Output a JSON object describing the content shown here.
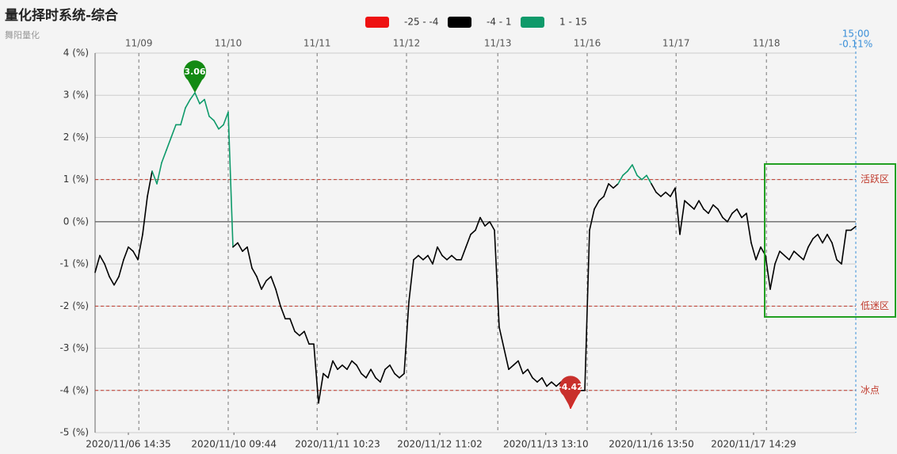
{
  "chart_data": {
    "type": "line",
    "title": "量化择时系统-综合",
    "subtitle": "舞阳量化",
    "x": [
      0,
      1,
      2,
      3,
      4,
      5,
      6,
      7,
      8,
      9,
      10,
      11,
      12,
      13,
      14,
      15,
      16,
      17,
      18,
      19,
      20,
      21,
      22,
      23,
      24,
      25,
      26,
      27,
      28,
      29,
      30,
      31,
      32,
      33,
      34,
      35,
      36,
      37,
      38,
      39,
      40,
      41,
      42,
      43,
      44,
      45,
      46,
      47,
      48,
      49,
      50,
      51,
      52,
      53,
      54,
      55,
      56,
      57,
      58,
      59,
      60,
      61,
      62,
      63,
      64,
      65,
      66,
      67,
      68,
      69,
      70,
      71,
      72,
      73,
      74,
      75,
      76,
      77,
      78,
      79,
      80,
      81,
      82,
      83,
      84,
      85,
      86,
      87,
      88,
      89,
      90,
      91,
      92,
      93,
      94,
      95,
      96,
      97,
      98,
      99,
      100,
      101,
      102,
      103,
      104,
      105,
      106,
      107,
      108,
      109,
      110,
      111,
      112,
      113,
      114,
      115,
      116,
      117,
      118,
      119,
      120,
      121,
      122,
      123,
      124,
      125,
      126,
      127,
      128,
      129,
      130,
      131,
      132,
      133,
      134,
      135,
      136,
      137,
      138,
      139,
      140,
      141,
      142,
      143,
      144,
      145,
      146,
      147,
      148,
      149,
      150,
      151,
      152,
      153,
      154,
      155,
      156,
      157,
      158,
      159,
      160
    ],
    "series": [
      {
        "values": [
          -1.2,
          -0.8,
          -1.0,
          -1.3,
          -1.5,
          -1.3,
          -0.9,
          -0.6,
          -0.7,
          -0.9,
          -0.3,
          0.6,
          1.2,
          0.9,
          1.4,
          1.7,
          2.0,
          2.3,
          2.3,
          2.7,
          2.9,
          3.06,
          2.8,
          2.9,
          2.5,
          2.4,
          2.2,
          2.3,
          2.6,
          -0.6,
          -0.5,
          -0.7,
          -0.6,
          -1.1,
          -1.3,
          -1.6,
          -1.4,
          -1.3,
          -1.6,
          -2.0,
          -2.3,
          -2.3,
          -2.6,
          -2.7,
          -2.6,
          -2.9,
          -2.9,
          -4.3,
          -3.6,
          -3.7,
          -3.3,
          -3.5,
          -3.4,
          -3.5,
          -3.3,
          -3.4,
          -3.6,
          -3.7,
          -3.5,
          -3.7,
          -3.8,
          -3.5,
          -3.4,
          -3.6,
          -3.7,
          -3.6,
          -1.9,
          -0.9,
          -0.8,
          -0.9,
          -0.8,
          -1.0,
          -0.6,
          -0.8,
          -0.9,
          -0.8,
          -0.9,
          -0.9,
          -0.6,
          -0.3,
          -0.2,
          0.1,
          -0.1,
          0.0,
          -0.2,
          -2.5,
          -3.0,
          -3.5,
          -3.4,
          -3.3,
          -3.6,
          -3.5,
          -3.7,
          -3.8,
          -3.7,
          -3.9,
          -3.8,
          -3.9,
          -3.8,
          -4.1,
          -4.42,
          -4.2,
          -4.0,
          -4.0,
          -0.2,
          0.3,
          0.5,
          0.6,
          0.9,
          0.8,
          0.9,
          1.1,
          1.2,
          1.35,
          1.1,
          1.0,
          1.1,
          0.9,
          0.7,
          0.6,
          0.7,
          0.6,
          0.8,
          -0.3,
          0.5,
          0.4,
          0.3,
          0.5,
          0.3,
          0.2,
          0.4,
          0.3,
          0.1,
          0.0,
          0.2,
          0.3,
          0.1,
          0.2,
          -0.5,
          -0.9,
          -0.6,
          -0.8,
          -1.6,
          -1.0,
          -0.7,
          -0.8,
          -0.9,
          -0.7,
          -0.8,
          -0.9,
          -0.6,
          -0.4,
          -0.3,
          -0.5,
          -0.3,
          -0.5,
          -0.9,
          -1.0,
          -0.2,
          -0.2,
          -0.11
        ]
      }
    ],
    "pieces": [
      {
        "min": -25,
        "max": -4,
        "color": "#ee1111",
        "label": "-25 - -4"
      },
      {
        "min": -4,
        "max": 1,
        "color": "#000000",
        "label": "-4 - 1"
      },
      {
        "min": 1,
        "max": 15,
        "color": "#0e9a6a",
        "label": "1 - 15"
      }
    ],
    "xlim": [
      0,
      160
    ],
    "xticks": [
      {
        "value": 9.2,
        "label": "11/09"
      },
      {
        "value": 28,
        "label": "11/10"
      },
      {
        "value": 46.7,
        "label": "11/11"
      },
      {
        "value": 65.5,
        "label": "11/12"
      },
      {
        "value": 84.7,
        "label": "11/13"
      },
      {
        "value": 103.5,
        "label": "11/16"
      },
      {
        "value": 122.2,
        "label": "11/17"
      },
      {
        "value": 141.2,
        "label": "11/18"
      }
    ],
    "xticks_bottom": [
      {
        "value": 7,
        "label": "2020/11/06 14:35"
      },
      {
        "value": 29.2,
        "label": "2020/11/10 09:44"
      },
      {
        "value": 51,
        "label": "2020/11/11 10:23"
      },
      {
        "value": 72.5,
        "label": "2020/11/12 11:02"
      },
      {
        "value": 94.8,
        "label": "2020/11/13 13:10"
      },
      {
        "value": 117,
        "label": "2020/11/16 13:50"
      },
      {
        "value": 138.5,
        "label": "2020/11/17 14:29"
      }
    ],
    "ylim": [
      -5,
      4
    ],
    "yticks": [
      {
        "value": 4,
        "label": "4 (%)"
      },
      {
        "value": 3,
        "label": "3 (%)"
      },
      {
        "value": 2,
        "label": "2 (%)"
      },
      {
        "value": 1,
        "label": "1 (%)"
      },
      {
        "value": 0,
        "label": "0 (%)"
      },
      {
        "value": -1,
        "label": "-1 (%)"
      },
      {
        "value": -2,
        "label": "-2 (%)"
      },
      {
        "value": -3,
        "label": "-3 (%)"
      },
      {
        "value": -4,
        "label": "-4 (%)"
      },
      {
        "value": -5,
        "label": "-5 (%)"
      }
    ],
    "grid": true,
    "mark_lines": [
      {
        "value": 1,
        "label": "活跃区"
      },
      {
        "value": -2,
        "label": "低迷区"
      },
      {
        "value": -4,
        "label": "冰点"
      }
    ],
    "mark_line_color": "#c0392b",
    "mark_points": [
      {
        "x": 21,
        "value": 3.06,
        "color": "#138a13"
      },
      {
        "x": 100,
        "value": -4.42,
        "color": "#c9302c"
      }
    ],
    "end_label": {
      "x": 160,
      "time": "15:00",
      "value": -0.11,
      "label": "-0.11%",
      "color": "#3a8fd8"
    }
  }
}
